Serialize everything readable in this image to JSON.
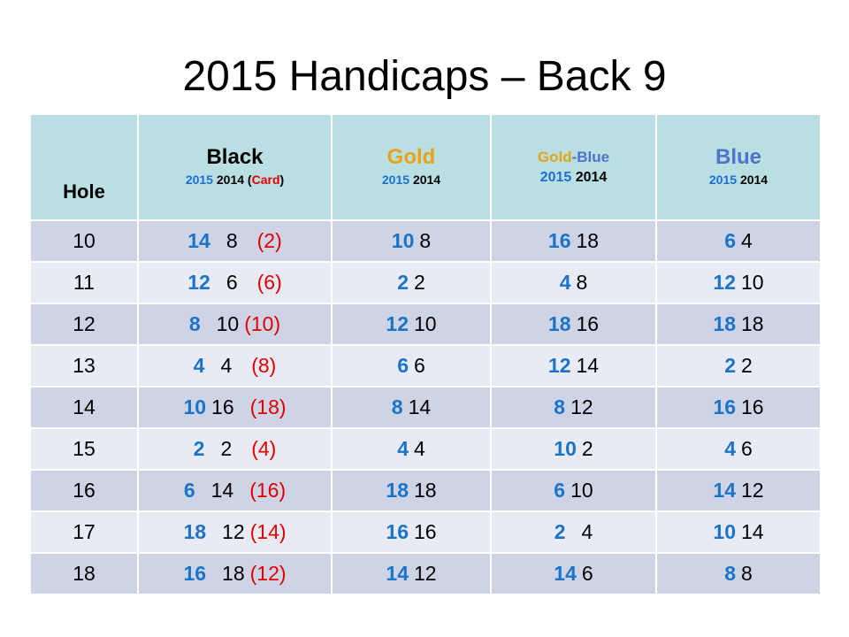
{
  "title": "2015 Handicaps – Back 9",
  "headers": {
    "hole": "Hole",
    "black": {
      "name": "Black",
      "y2015": "2015",
      "y2014": "2014",
      "card_open": "(",
      "card": "Card",
      "card_close": ")"
    },
    "gold": {
      "name": "Gold",
      "y2015": "2015",
      "y2014": "2014"
    },
    "gold_blue": {
      "name_gold": "Gold",
      "dash": "-",
      "name_blue": "Blue",
      "y2015": "2015",
      "y2014": "2014"
    },
    "blue": {
      "name": "Blue",
      "y2015": "2015",
      "y2014": "2014"
    }
  },
  "rows": [
    {
      "hole": "10",
      "black_2015": "14",
      "black_2014": "8",
      "black_card": "(2)",
      "gold_2015": "10",
      "gold_2014": "8",
      "gb_2015": "16",
      "gb_2014": "18",
      "blue_2015": "6",
      "blue_2014": "4"
    },
    {
      "hole": "11",
      "black_2015": "12",
      "black_2014": "6",
      "black_card": "(6)",
      "gold_2015": "2",
      "gold_2014": "2",
      "gb_2015": "4",
      "gb_2014": "8",
      "blue_2015": "12",
      "blue_2014": "10"
    },
    {
      "hole": "12",
      "black_2015": "8",
      "black_2014": "10",
      "black_card": "(10)",
      "gold_2015": "12",
      "gold_2014": "10",
      "gb_2015": "18",
      "gb_2014": "16",
      "blue_2015": "18",
      "blue_2014": "18"
    },
    {
      "hole": "13",
      "black_2015": "4",
      "black_2014": "4",
      "black_card": "(8)",
      "gold_2015": "6",
      "gold_2014": "6",
      "gb_2015": "12",
      "gb_2014": "14",
      "blue_2015": "2",
      "blue_2014": "2"
    },
    {
      "hole": "14",
      "black_2015": "10",
      "black_2014": "16",
      "black_card": "(18)",
      "gold_2015": "8",
      "gold_2014": "14",
      "gb_2015": "8",
      "gb_2014": "12",
      "blue_2015": "16",
      "blue_2014": "16"
    },
    {
      "hole": "15",
      "black_2015": "2",
      "black_2014": "2",
      "black_card": "(4)",
      "gold_2015": "4",
      "gold_2014": "4",
      "gb_2015": "10",
      "gb_2014": "2",
      "blue_2015": "4",
      "blue_2014": "6"
    },
    {
      "hole": "16",
      "black_2015": "6",
      "black_2014": "14",
      "black_card": "(16)",
      "gold_2015": "18",
      "gold_2014": "18",
      "gb_2015": "6",
      "gb_2014": "10",
      "blue_2015": "14",
      "blue_2014": "12"
    },
    {
      "hole": "17",
      "black_2015": "18",
      "black_2014": "12",
      "black_card": "(14)",
      "gold_2015": "16",
      "gold_2014": "16",
      "gb_2015": "2",
      "gb_2014": "4",
      "blue_2015": "10",
      "blue_2014": "14"
    },
    {
      "hole": "18",
      "black_2015": "16",
      "black_2014": "18",
      "black_card": "(12)",
      "gold_2015": "14",
      "gold_2014": "12",
      "gb_2015": "14",
      "gb_2014": "6",
      "blue_2015": "8",
      "blue_2014": "8"
    }
  ],
  "colors": {
    "header_bg": "#b9dfe2",
    "row_odd_bg": "#cfd3e6",
    "row_even_bg": "#e8eaf4",
    "value_2015": "#1b74c8",
    "card_value": "#e00000",
    "gold": "#e8a317",
    "blue": "#4f73c9"
  }
}
